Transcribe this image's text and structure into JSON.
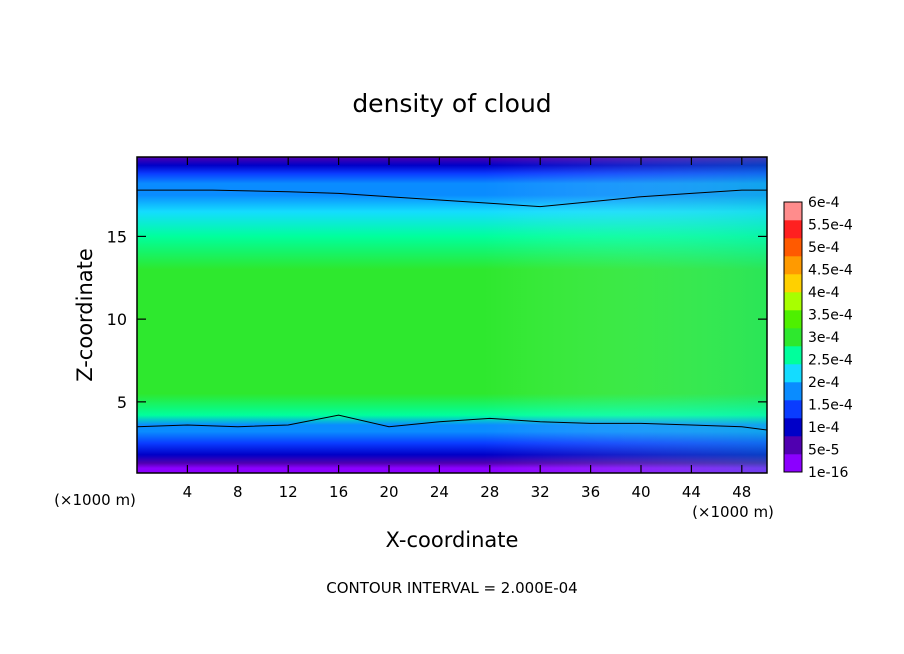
{
  "chart_data": {
    "type": "heatmap",
    "title": "density of cloud",
    "xlabel": "X-coordinate",
    "ylabel": "Z-coordinate",
    "x_unit_left": "(×1000 m)",
    "x_unit_right": "(×1000 m)",
    "footer": "CONTOUR INTERVAL = 2.000E-04",
    "xlim": [
      0,
      50
    ],
    "ylim": [
      0.7,
      19.8
    ],
    "xticks": [
      4,
      8,
      12,
      16,
      20,
      24,
      28,
      32,
      36,
      40,
      44,
      48
    ],
    "yticks": [
      5,
      10,
      15
    ],
    "colorbar": {
      "labels": [
        "6e-4",
        "5.5e-4",
        "5e-4",
        "4.5e-4",
        "4e-4",
        "3.5e-4",
        "3e-4",
        "2.5e-4",
        "2e-4",
        "1.5e-4",
        "1e-4",
        "5e-5",
        "1e-16"
      ],
      "colors": [
        "#8b00ff",
        "#5000b0",
        "#0000c8",
        "#0a3cff",
        "#0a8cff",
        "#14dcff",
        "#00ff9c",
        "#2ee82e",
        "#4ef000",
        "#a8ff00",
        "#ffd000",
        "#ff9a00",
        "#ff5a00",
        "#ff2020",
        "#ff8c8c"
      ]
    },
    "profile": {
      "z": [
        0.7,
        1.0,
        1.3,
        1.8,
        2.5,
        3.2,
        3.6,
        4.2,
        5.5,
        7.0,
        9.0,
        11.0,
        13.0,
        15.0,
        16.5,
        17.5,
        18.2,
        18.8,
        19.3,
        19.8
      ],
      "value": [
        0.0,
        1e-05,
        3e-05,
        7e-05,
        0.00011,
        0.00015,
        0.00019,
        0.00024,
        0.00028,
        0.00031,
        0.00032,
        0.00031,
        0.00029,
        0.00026,
        0.00023,
        0.00019,
        0.00016,
        0.00012,
        8e-05,
        5e-05
      ]
    },
    "contour_lines": [
      {
        "value": 0.0002,
        "x": [
          0,
          6,
          12,
          16,
          20,
          24,
          28,
          32,
          36,
          40,
          44,
          48,
          50
        ],
        "z": [
          17.8,
          17.8,
          17.7,
          17.6,
          17.4,
          17.2,
          17.0,
          16.8,
          17.1,
          17.4,
          17.6,
          17.8,
          17.8
        ]
      },
      {
        "value": 0.0002,
        "x": [
          0,
          4,
          8,
          12,
          16,
          20,
          24,
          28,
          32,
          36,
          40,
          44,
          48,
          50
        ],
        "z": [
          3.5,
          3.6,
          3.5,
          3.6,
          4.2,
          3.5,
          3.8,
          4.0,
          3.8,
          3.7,
          3.7,
          3.6,
          3.5,
          3.3
        ]
      }
    ]
  }
}
